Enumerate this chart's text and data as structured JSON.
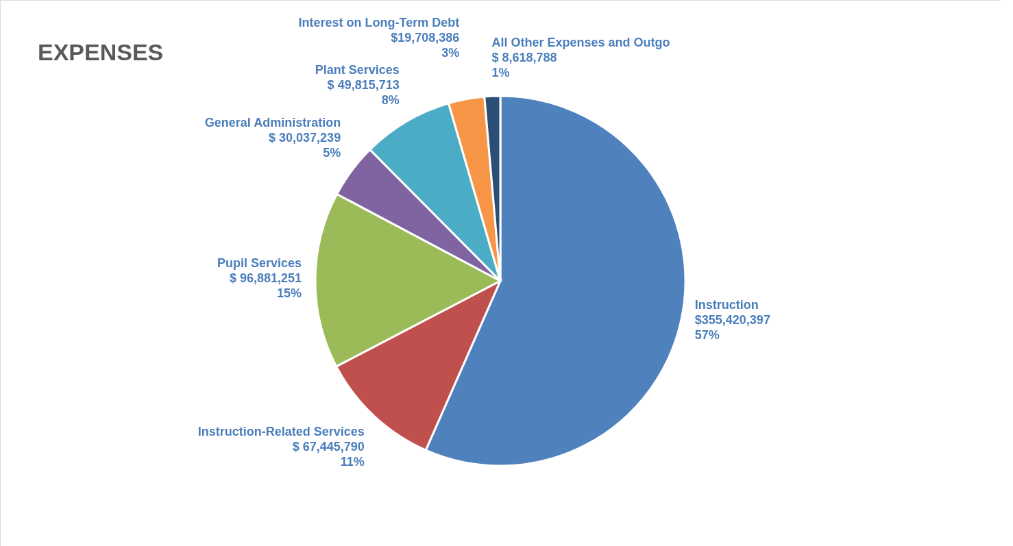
{
  "chart_data": {
    "type": "pie",
    "title": "EXPENSES",
    "categories": [
      "Instruction",
      "Instruction-Related Services",
      "Pupil Services",
      "General Administration",
      "Plant Services",
      "Interest on Long-Term Debt",
      "All Other Expenses and Outgo"
    ],
    "values": [
      355420397,
      67445790,
      96881251,
      30037239,
      49815713,
      19708386,
      8618788
    ],
    "colors": [
      "#4f81bd",
      "#c0504d",
      "#9bbb59",
      "#8064a2",
      "#4bacc6",
      "#f79646",
      "#2c4d75"
    ],
    "value_labels": [
      "$355,420,397\n57%",
      "$ 67,445,790\n11%",
      "$ 96,881,251\n15%",
      "$ 30,037,239\n5%",
      "$ 49,815,713\n8%",
      "$19,708,386\n3%",
      "$ 8,618,788\n1%"
    ]
  }
}
